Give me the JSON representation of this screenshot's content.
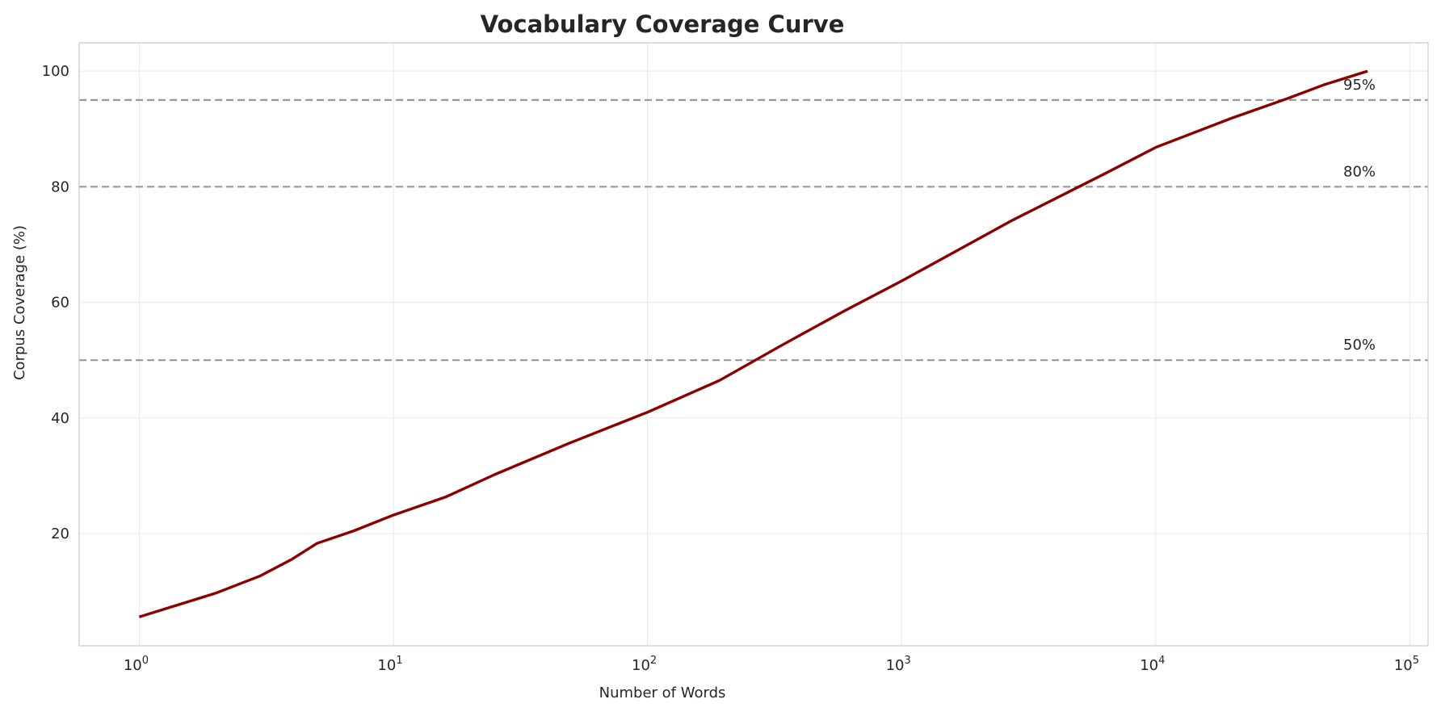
{
  "chart_data": {
    "type": "line",
    "title": "Vocabulary Coverage Curve",
    "xlabel": "Number of Words",
    "ylabel": "Corpus Coverage (%)",
    "xscale": "log",
    "xlim": [
      0.58,
      118000
    ],
    "ylim": [
      0.6,
      104.9
    ],
    "grid": true,
    "x_ticks": [
      {
        "value": 1,
        "base": "10",
        "exp": "0"
      },
      {
        "value": 10,
        "base": "10",
        "exp": "1"
      },
      {
        "value": 100,
        "base": "10",
        "exp": "2"
      },
      {
        "value": 1000,
        "base": "10",
        "exp": "3"
      },
      {
        "value": 10000,
        "base": "10",
        "exp": "4"
      },
      {
        "value": 100000,
        "base": "10",
        "exp": "5"
      }
    ],
    "y_ticks": [
      20,
      40,
      60,
      80,
      100
    ],
    "series": [
      {
        "color": "#8b0000",
        "x": [
          1,
          2,
          3,
          4,
          5,
          7,
          10,
          16,
          25,
          49,
          100,
          192,
          335,
          600,
          1000,
          2700,
          6200,
          10000,
          20000,
          32700,
          45700,
          68200
        ],
        "y": [
          5.6,
          9.7,
          12.7,
          15.6,
          18.3,
          20.5,
          23.2,
          26.3,
          30.2,
          35.6,
          41.0,
          46.5,
          52.5,
          58.6,
          63.7,
          74.1,
          82.1,
          86.8,
          91.9,
          95.2,
          97.6,
          100
        ]
      }
    ],
    "reference_lines": [
      {
        "y": 95,
        "label": "95%"
      },
      {
        "y": 80,
        "label": "80%"
      },
      {
        "y": 50,
        "label": "50%"
      }
    ],
    "reference_color": "#999999"
  }
}
